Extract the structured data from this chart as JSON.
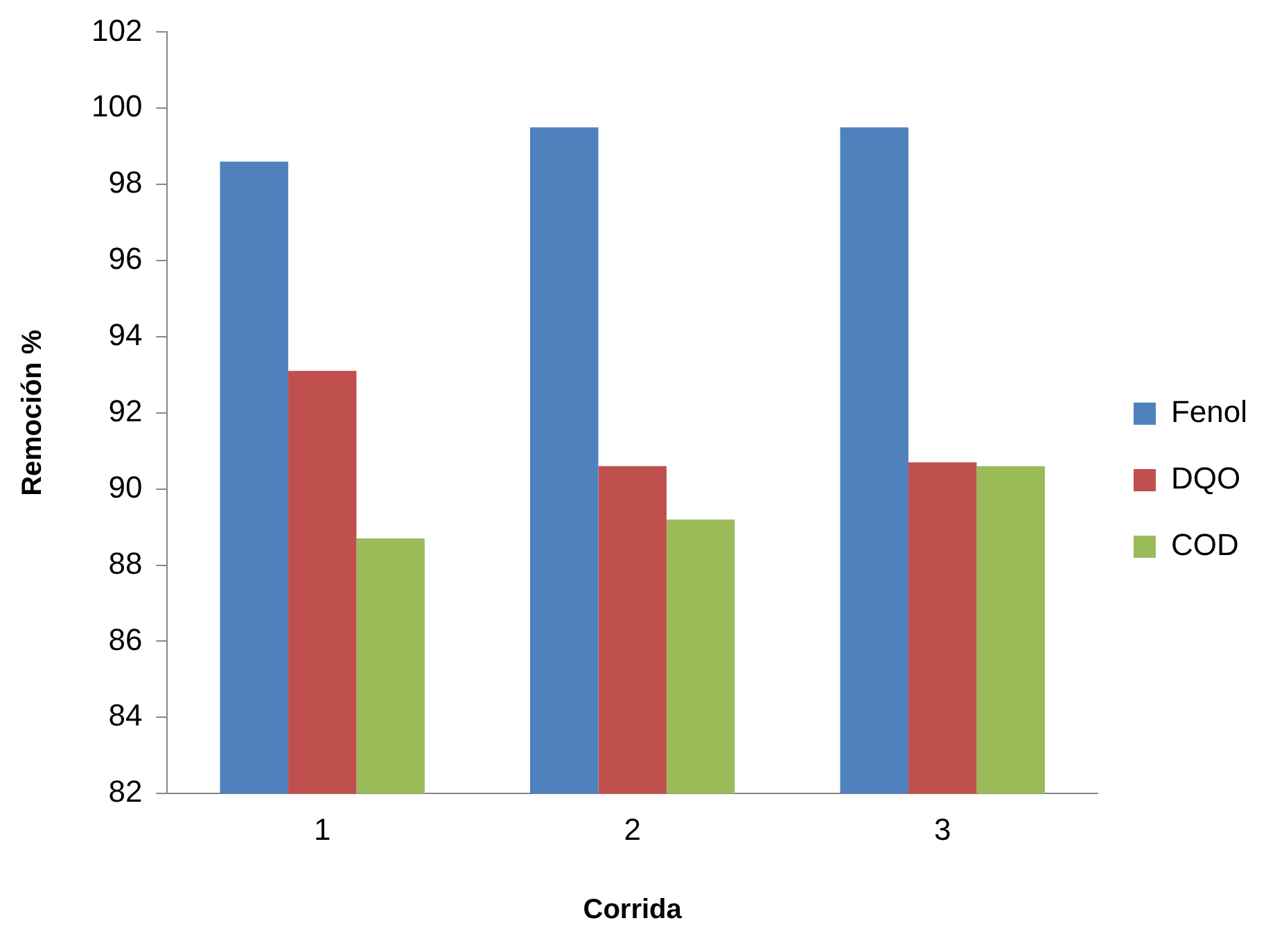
{
  "chart_data": {
    "type": "bar",
    "xlabel": "Corrida",
    "ylabel": "Remoción %",
    "categories": [
      "1",
      "2",
      "3"
    ],
    "series": [
      {
        "name": "Fenol",
        "color": "#4f81bd",
        "values": [
          98.6,
          99.5,
          99.5
        ]
      },
      {
        "name": "DQO",
        "color": "#c0504d",
        "values": [
          93.1,
          90.6,
          90.7
        ]
      },
      {
        "name": "COD",
        "color": "#9bbb59",
        "values": [
          88.7,
          89.2,
          90.6
        ]
      }
    ],
    "ylim": [
      82,
      102
    ],
    "yticks": [
      82,
      84,
      86,
      88,
      90,
      92,
      94,
      96,
      98,
      100,
      102
    ],
    "grid": false,
    "legend": "right"
  }
}
